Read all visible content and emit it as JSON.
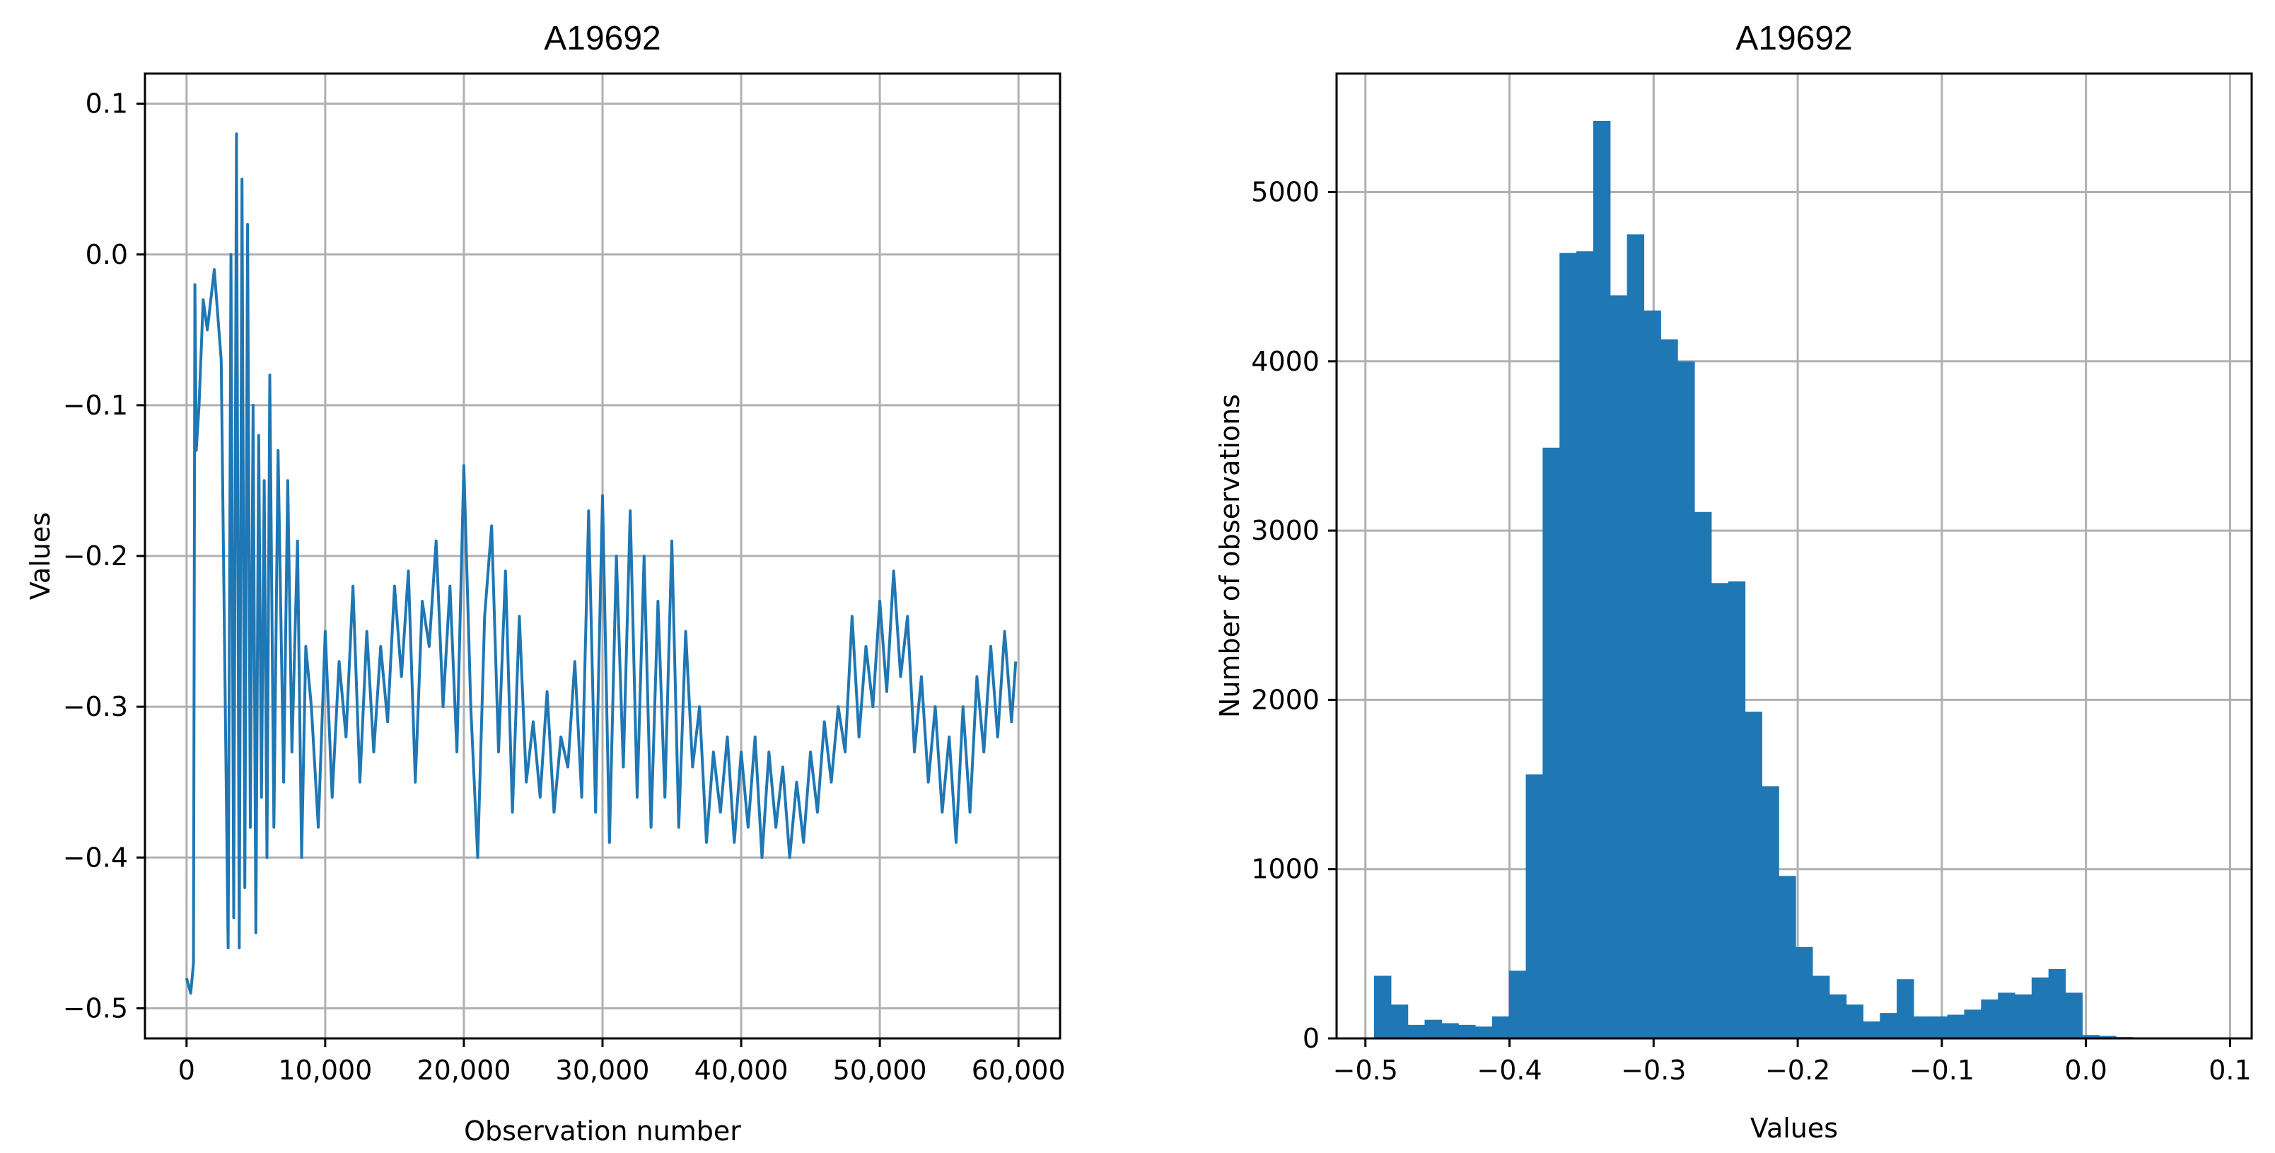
{
  "chart_data": [
    {
      "type": "line",
      "title": "A19692",
      "xlabel": "Observation number",
      "ylabel": "Values",
      "xlim": [
        -3000,
        63000
      ],
      "ylim": [
        -0.52,
        0.12
      ],
      "xticks": [
        0,
        10000,
        20000,
        30000,
        40000,
        50000,
        60000
      ],
      "xtick_labels": [
        "0",
        "10,000",
        "20,000",
        "30,000",
        "40,000",
        "50,000",
        "60,000"
      ],
      "yticks": [
        -0.5,
        -0.4,
        -0.3,
        -0.2,
        -0.1,
        0.0,
        0.1
      ],
      "ytick_labels": [
        "−0.5",
        "−0.4",
        "−0.3",
        "−0.2",
        "−0.1",
        "0.0",
        "0.1"
      ],
      "grid": true,
      "color": "#1f77b4",
      "series": [
        {
          "x": [
            0,
            300,
            500,
            600,
            700,
            900,
            1200,
            1500,
            2000,
            2500,
            3000,
            3200,
            3400,
            3600,
            3800,
            4000,
            4200,
            4400,
            4600,
            4800,
            5000,
            5200,
            5400,
            5600,
            5800,
            6000,
            6300,
            6600,
            7000,
            7300,
            7600,
            8000,
            8300,
            8600,
            9000,
            9500,
            10000,
            10500,
            11000,
            11500,
            12000,
            12500,
            13000,
            13500,
            14000,
            14500,
            15000,
            15500,
            16000,
            16500,
            17000,
            17500,
            18000,
            18500,
            19000,
            19500,
            20000,
            20500,
            21000,
            21500,
            22000,
            22500,
            23000,
            23500,
            24000,
            24500,
            25000,
            25500,
            26000,
            26500,
            27000,
            27500,
            28000,
            28500,
            29000,
            29500,
            30000,
            30500,
            31000,
            31500,
            32000,
            32500,
            33000,
            33500,
            34000,
            34500,
            35000,
            35500,
            36000,
            36500,
            37000,
            37500,
            38000,
            38500,
            39000,
            39500,
            40000,
            40500,
            41000,
            41500,
            42000,
            42500,
            43000,
            43500,
            44000,
            44500,
            45000,
            45500,
            46000,
            46500,
            47000,
            47500,
            48000,
            48500,
            49000,
            49500,
            50000,
            50500,
            51000,
            51500,
            52000,
            52500,
            53000,
            53500,
            54000,
            54500,
            55000,
            55500,
            56000,
            56500,
            57000,
            57500,
            58000,
            58500,
            59000,
            59500,
            59800
          ],
          "y": [
            -0.48,
            -0.49,
            -0.47,
            -0.02,
            -0.13,
            -0.1,
            -0.03,
            -0.05,
            -0.01,
            -0.07,
            -0.46,
            0.0,
            -0.44,
            0.08,
            -0.46,
            0.05,
            -0.42,
            0.02,
            -0.38,
            -0.1,
            -0.45,
            -0.12,
            -0.36,
            -0.15,
            -0.4,
            -0.08,
            -0.38,
            -0.13,
            -0.35,
            -0.15,
            -0.33,
            -0.19,
            -0.4,
            -0.26,
            -0.3,
            -0.38,
            -0.25,
            -0.36,
            -0.27,
            -0.32,
            -0.22,
            -0.35,
            -0.25,
            -0.33,
            -0.26,
            -0.31,
            -0.22,
            -0.28,
            -0.21,
            -0.35,
            -0.23,
            -0.26,
            -0.19,
            -0.3,
            -0.22,
            -0.33,
            -0.14,
            -0.3,
            -0.4,
            -0.24,
            -0.18,
            -0.33,
            -0.21,
            -0.37,
            -0.24,
            -0.35,
            -0.31,
            -0.36,
            -0.29,
            -0.37,
            -0.32,
            -0.34,
            -0.27,
            -0.36,
            -0.17,
            -0.37,
            -0.16,
            -0.39,
            -0.2,
            -0.34,
            -0.17,
            -0.36,
            -0.2,
            -0.38,
            -0.23,
            -0.36,
            -0.19,
            -0.38,
            -0.25,
            -0.34,
            -0.3,
            -0.39,
            -0.33,
            -0.37,
            -0.32,
            -0.39,
            -0.33,
            -0.38,
            -0.32,
            -0.4,
            -0.33,
            -0.38,
            -0.34,
            -0.4,
            -0.35,
            -0.39,
            -0.33,
            -0.37,
            -0.31,
            -0.35,
            -0.3,
            -0.33,
            -0.24,
            -0.32,
            -0.26,
            -0.3,
            -0.23,
            -0.29,
            -0.21,
            -0.28,
            -0.24,
            -0.33,
            -0.28,
            -0.35,
            -0.3,
            -0.37,
            -0.32,
            -0.39,
            -0.3,
            -0.37,
            -0.28,
            -0.33,
            -0.26,
            -0.32,
            -0.25,
            -0.31,
            -0.27
          ]
        }
      ]
    },
    {
      "type": "bar",
      "title": "A19692",
      "xlabel": "Values",
      "ylabel": "Number of observations",
      "xlim": [
        -0.52,
        0.115
      ],
      "ylim": [
        0,
        5700
      ],
      "xticks": [
        -0.5,
        -0.4,
        -0.3,
        -0.2,
        -0.1,
        0.0,
        0.1
      ],
      "xtick_labels": [
        "−0.5",
        "−0.4",
        "−0.3",
        "−0.2",
        "−0.1",
        "0.0",
        "0.1"
      ],
      "yticks": [
        0,
        1000,
        2000,
        3000,
        4000,
        5000
      ],
      "ytick_labels": [
        "0",
        "1000",
        "2000",
        "3000",
        "4000",
        "5000"
      ],
      "grid": true,
      "color": "#1f77b4",
      "bin_start": -0.494,
      "bin_width": 0.0117,
      "values": [
        370,
        200,
        80,
        110,
        90,
        80,
        70,
        130,
        400,
        1560,
        3490,
        4640,
        4650,
        5420,
        4390,
        4750,
        4300,
        4130,
        4000,
        3110,
        2690,
        2700,
        1930,
        1490,
        960,
        540,
        370,
        260,
        200,
        100,
        150,
        350,
        130,
        130,
        140,
        170,
        230,
        270,
        260,
        360,
        410,
        270,
        20,
        15,
        8,
        5,
        4,
        3,
        2,
        1
      ]
    }
  ]
}
